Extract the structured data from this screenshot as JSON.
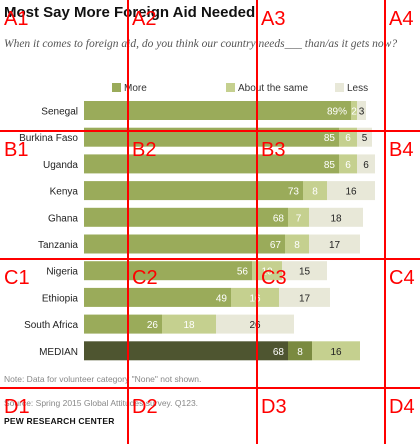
{
  "title": "Most Say More Foreign Aid Needed",
  "subtitle": "When it comes to foreign aid, do you think our country needs___ than/as it gets now?",
  "note": "Note: Data for volunteer category \"None\" not shown.",
  "source": "Source: Spring 2015 Global Attitudes survey. Q123.",
  "brand": "PEW RESEARCH CENTER",
  "overlay": {
    "color": "#ff0000",
    "cells": [
      "A1",
      "A2",
      "A3",
      "A4",
      "B1",
      "B2",
      "B3",
      "B4",
      "C1",
      "C2",
      "C3",
      "C4",
      "D1",
      "D2",
      "D3",
      "D4"
    ]
  },
  "chart_data": {
    "type": "bar",
    "stacked": true,
    "orientation": "horizontal",
    "categories": [
      "Senegal",
      "Burkina Faso",
      "Uganda",
      "Kenya",
      "Ghana",
      "Tanzania",
      "Nigeria",
      "Ethiopia",
      "South Africa",
      "MEDIAN"
    ],
    "series": [
      {
        "name": "More",
        "color": "#9aab5a",
        "values": [
          89,
          85,
          85,
          73,
          68,
          67,
          56,
          49,
          26,
          68
        ]
      },
      {
        "name": "About the same",
        "color": "#c5d08f",
        "values": [
          2,
          6,
          6,
          8,
          7,
          8,
          10,
          16,
          18,
          8
        ]
      },
      {
        "name": "Less",
        "color": "#e8e8d8",
        "values": [
          3,
          5,
          6,
          16,
          18,
          17,
          15,
          17,
          26,
          16
        ]
      }
    ],
    "median_colors": [
      "#4e5530",
      "#7a8a40",
      "#c5d08f"
    ],
    "legend_position": "top",
    "xlim": [
      0,
      100
    ]
  }
}
